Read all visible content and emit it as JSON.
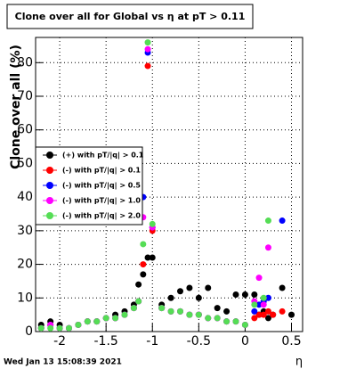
{
  "chart_data": {
    "type": "scatter",
    "title": "Clone  over all for Global vs  η at pT > 0.11",
    "y_label": "Clone  over all (%)",
    "x_label": "η",
    "timestamp": "Wed Jan 13 15:08:39 2021",
    "x": [
      -2.2,
      -2.1,
      -2.0,
      -1.9,
      -1.8,
      -1.7,
      -1.6,
      -1.5,
      -1.4,
      -1.3,
      -1.2,
      -1.15,
      -1.1,
      -1.05,
      -1.0,
      -0.9,
      -0.8,
      -0.7,
      -0.6,
      -0.5,
      -0.4,
      -0.3,
      -0.2,
      -0.1,
      0.0,
      0.1,
      0.15,
      0.2,
      0.25,
      0.3,
      0.4,
      0.5
    ],
    "series": [
      {
        "name": "(+) with pT/|q| > 0.1",
        "color": "#000000",
        "values": [
          2,
          3,
          2,
          1,
          2,
          3,
          3,
          4,
          5,
          6,
          8,
          14,
          17,
          22,
          22,
          8,
          10,
          12,
          13,
          10,
          13,
          7,
          6,
          11,
          11,
          11,
          5,
          6,
          4,
          5,
          13,
          5
        ]
      },
      {
        "name": "(-) with pT/|q| > 0.1",
        "color": "#ff0000",
        "values": [
          1,
          2,
          1,
          1,
          2,
          3,
          3,
          4,
          4,
          5,
          7,
          9,
          20,
          79,
          30,
          7,
          6,
          6,
          5,
          5,
          4,
          4,
          3,
          3,
          2,
          4,
          5,
          5,
          6,
          5,
          6,
          null
        ]
      },
      {
        "name": "(-) with pT/|q| > 0.5",
        "color": "#0000ff",
        "values": [
          1,
          2,
          1,
          1,
          2,
          3,
          3,
          4,
          4,
          5,
          7,
          9,
          40,
          83,
          31,
          7,
          6,
          6,
          5,
          5,
          4,
          4,
          3,
          3,
          2,
          6,
          8,
          9,
          10,
          null,
          33,
          null
        ]
      },
      {
        "name": "(-) with pT/|q| > 1.0",
        "color": "#ff00ff",
        "values": [
          1,
          2,
          1,
          1,
          2,
          3,
          3,
          4,
          4,
          5,
          7,
          9,
          34,
          84,
          31,
          7,
          6,
          6,
          5,
          5,
          4,
          4,
          3,
          3,
          2,
          9,
          16,
          8,
          25,
          null,
          null,
          null
        ]
      },
      {
        "name": "(-) with pT/|q| > 2.0",
        "color": "#55dd55",
        "values": [
          1,
          1,
          1,
          1,
          2,
          3,
          3,
          4,
          4,
          5,
          7,
          9,
          26,
          86,
          32,
          7,
          6,
          6,
          5,
          5,
          4,
          4,
          3,
          3,
          2,
          8,
          null,
          10,
          33,
          null,
          null,
          null
        ]
      }
    ],
    "xlim": [
      -2.26,
      0.62
    ],
    "ylim": [
      0,
      87.5
    ],
    "xticks": [
      -2,
      -1.5,
      -1,
      -0.5,
      0,
      0.5
    ],
    "yticks": [
      0,
      10,
      20,
      30,
      40,
      50,
      60,
      70,
      80
    ],
    "grid": true,
    "legend": "left"
  }
}
